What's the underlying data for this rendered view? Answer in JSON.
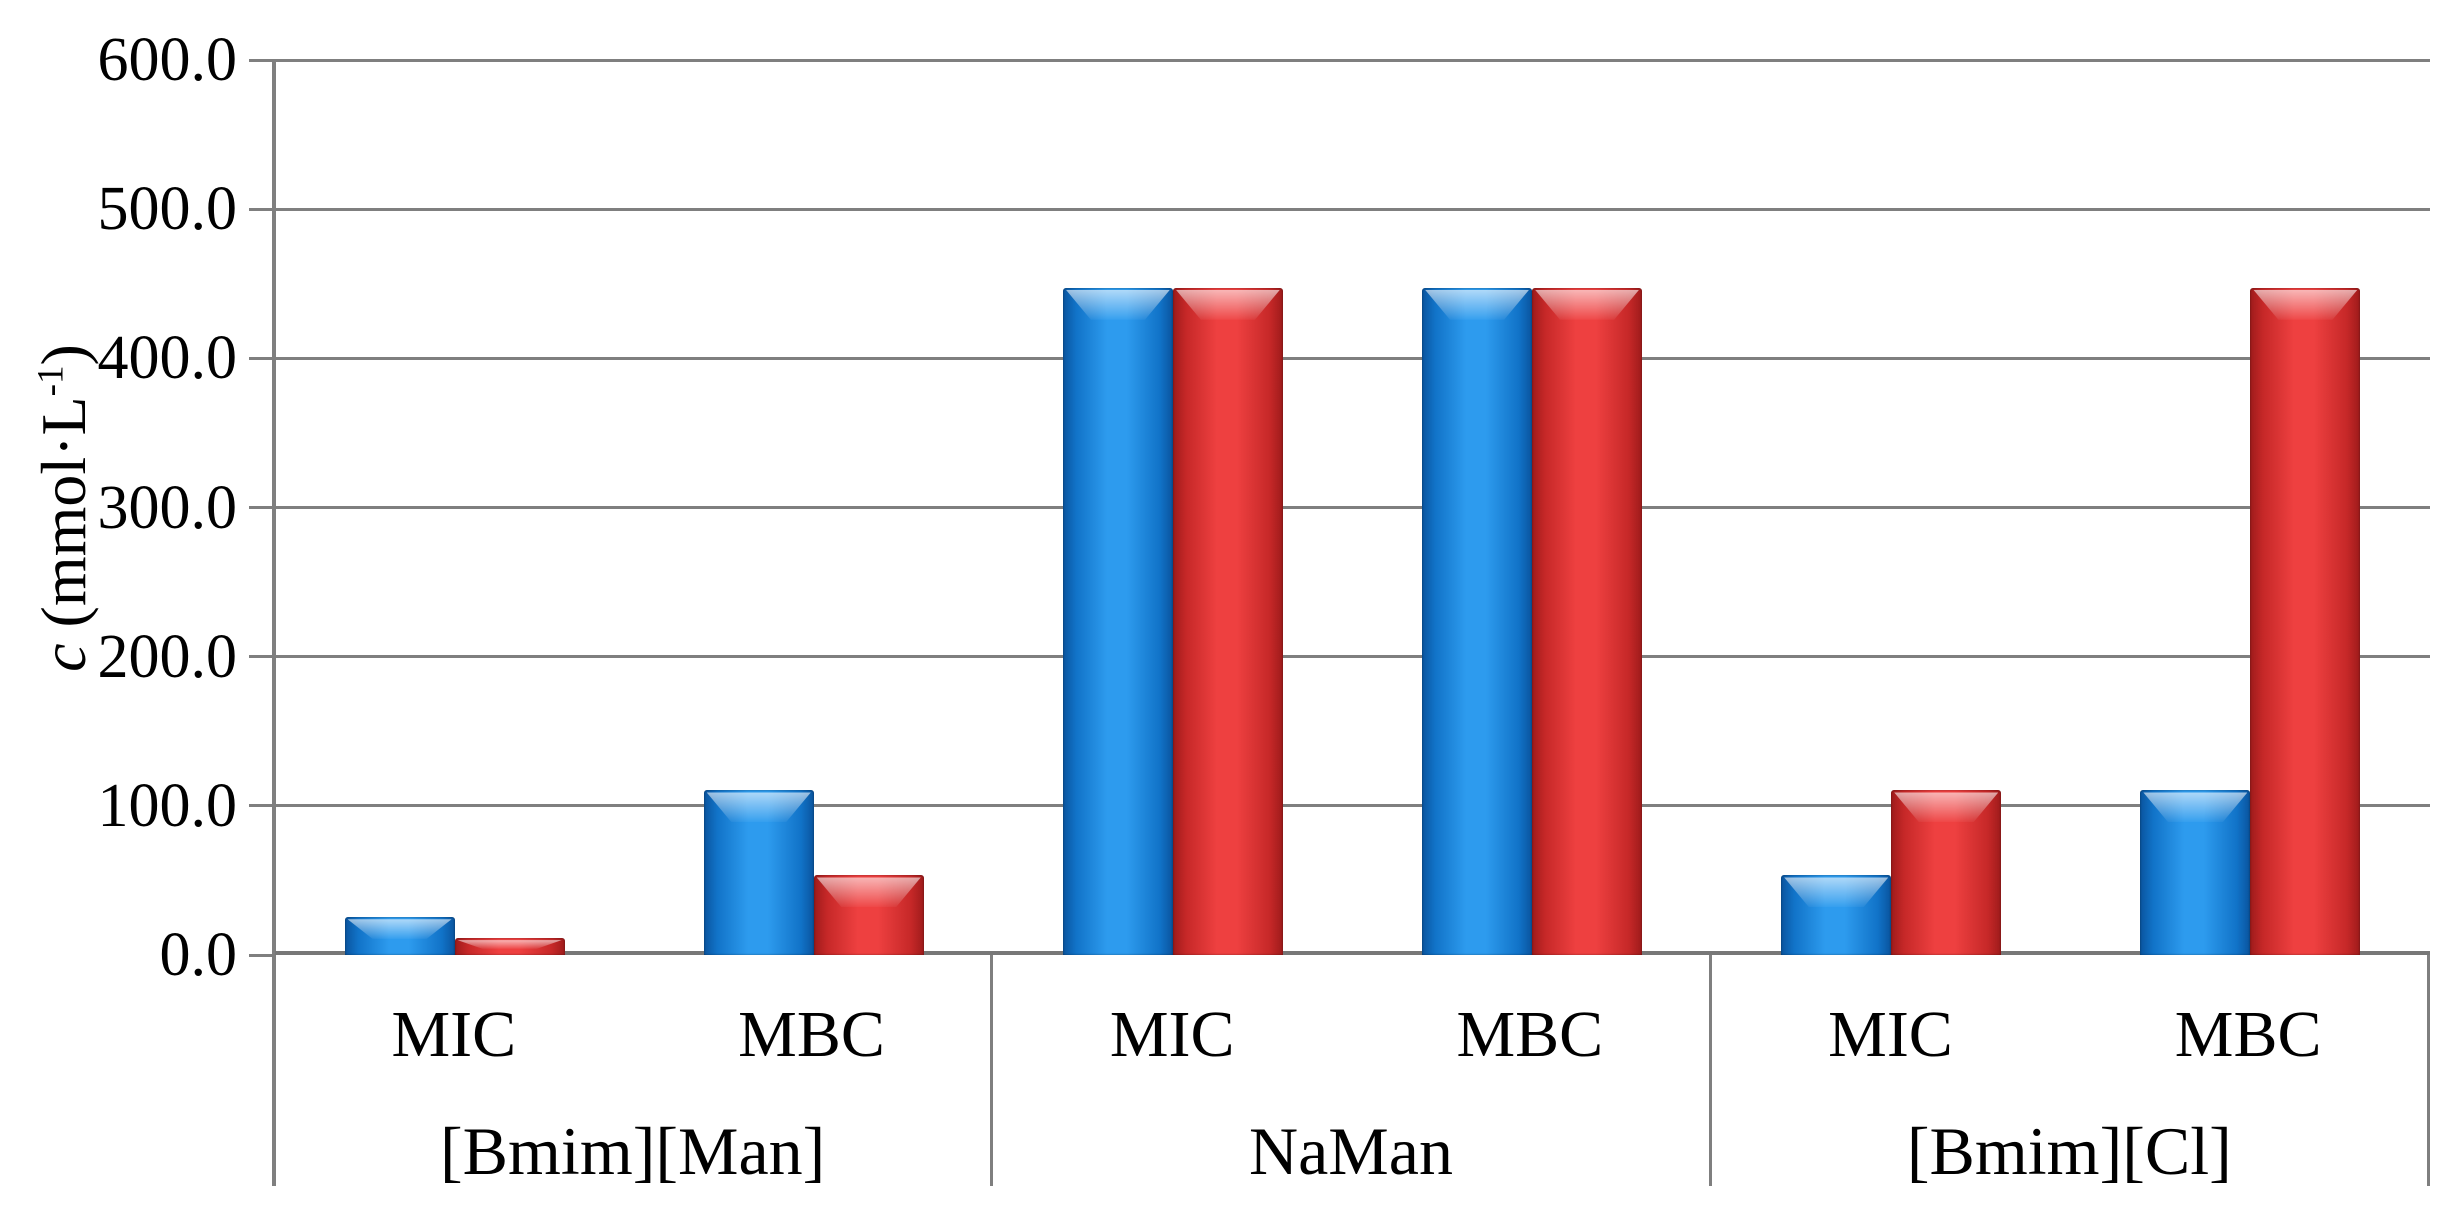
{
  "chart_data": {
    "type": "bar",
    "title": "",
    "ylabel": "c (mmol·L-1)",
    "ylabel_parts": {
      "var": "c",
      "rest": " (mmol·L",
      "sup": "-1",
      "close": ")"
    },
    "ylim": [
      0,
      600
    ],
    "ytick_interval": 100,
    "y_tick_labels": [
      "600.0",
      "500.0",
      "400.0",
      "300.0",
      "200.0",
      "100.0",
      "0.0"
    ],
    "grid": true,
    "legend_position": "none",
    "grid_color": "#7f7f7f",
    "groups": [
      {
        "label": "[Bmim][Man]",
        "categories": [
          "MIC",
          "MBC"
        ]
      },
      {
        "label": "NaMan",
        "categories": [
          "MIC",
          "MBC"
        ]
      },
      {
        "label": "[Bmim][Cl]",
        "categories": [
          "MIC",
          "MBC"
        ]
      }
    ],
    "slot_order": [
      "[Bmim][Man] MIC",
      "[Bmim][Man] MBC",
      "NaMan MIC",
      "NaMan MBC",
      "[Bmim][Cl] MIC",
      "[Bmim][Cl] MBC"
    ],
    "series": [
      {
        "name": "blue",
        "color": "#1d86dd",
        "values": [
          28,
          113,
          450,
          450,
          56,
          113
        ]
      },
      {
        "name": "red",
        "color": "#e23c3c",
        "values": [
          14,
          56,
          450,
          450,
          113,
          450
        ]
      }
    ]
  }
}
